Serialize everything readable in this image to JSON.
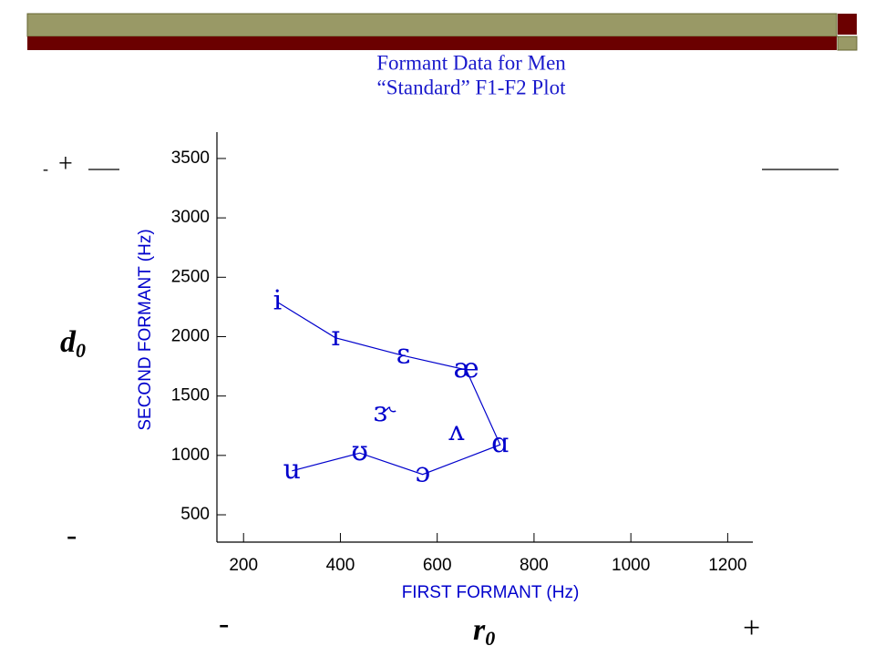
{
  "chart_data": {
    "type": "vowel-scatter",
    "title": "Formant Data for Men",
    "subtitle": "“Standard” F1-F2 Plot",
    "x_label": "FIRST FORMANT (Hz)",
    "y_label": "SECOND FORMANT (Hz)",
    "color": "#0000cc",
    "xlim": [
      145,
      1252
    ],
    "ylim": [
      270,
      3722
    ],
    "xticks": [
      200,
      400,
      600,
      800,
      1000,
      1200
    ],
    "yticks": [
      500,
      1000,
      1500,
      2000,
      2500,
      3000,
      3500
    ],
    "connected": {
      "labels": [
        "i",
        "ɪ",
        "ɛ",
        "æ",
        "ɑ",
        "ɔ",
        "ʊ",
        "u"
      ],
      "x": [
        270,
        390,
        530,
        660,
        730,
        570,
        440,
        300
      ],
      "y": [
        2290,
        1990,
        1840,
        1720,
        1090,
        840,
        1020,
        870
      ]
    },
    "unconnected": {
      "labels": [
        "ʌ",
        "ɝ"
      ],
      "x": [
        640,
        490
      ],
      "y": [
        1190,
        1350
      ]
    }
  },
  "annotations": {
    "top_minus": "-",
    "top_plus": "+",
    "d_letter": "d",
    "d_subscript": "0",
    "left_minus": "-",
    "bottom_minus": "-",
    "r_letter": "r",
    "r_subscript": "0",
    "bottom_plus": "+"
  }
}
